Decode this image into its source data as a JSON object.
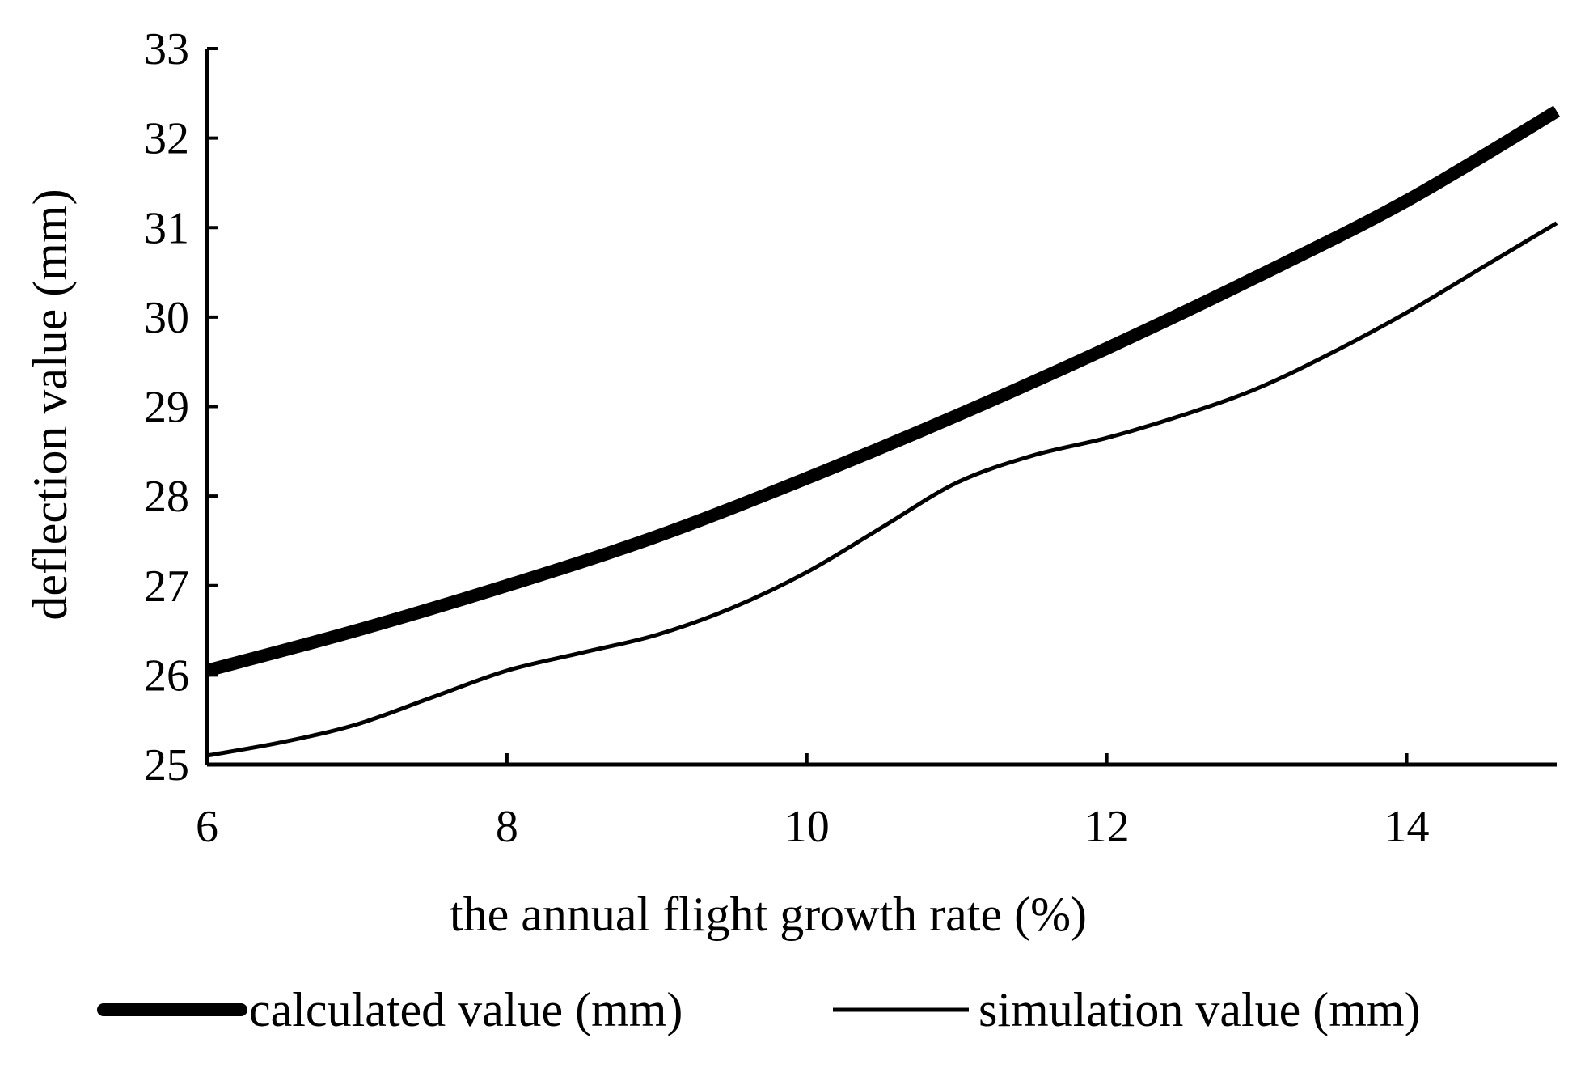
{
  "chart_data": {
    "type": "line",
    "title": "",
    "xlabel": "the annual flight growth rate (%)",
    "ylabel": "deflection value (mm)",
    "xlim": [
      6,
      15
    ],
    "ylim": [
      25,
      33
    ],
    "xticks": [
      6,
      8,
      10,
      12,
      14
    ],
    "yticks": [
      25,
      26,
      27,
      28,
      29,
      30,
      31,
      32,
      33
    ],
    "grid": false,
    "legend_position": "bottom",
    "series": [
      {
        "name": "calculated value (mm)",
        "style": "thick",
        "color": "#000000",
        "x": [
          6,
          7,
          8,
          9,
          10,
          11,
          12,
          13,
          14,
          15
        ],
        "y": [
          26.05,
          26.5,
          27.0,
          27.55,
          28.2,
          28.9,
          29.65,
          30.45,
          31.3,
          32.3
        ]
      },
      {
        "name": "simulation value (mm)",
        "style": "thin",
        "color": "#000000",
        "x": [
          6,
          6.5,
          7,
          7.5,
          8,
          8.5,
          9,
          9.5,
          10,
          10.5,
          11,
          11.5,
          12,
          12.5,
          13,
          13.5,
          14,
          14.5,
          15
        ],
        "y": [
          25.1,
          25.25,
          25.45,
          25.75,
          26.05,
          26.25,
          26.45,
          26.75,
          27.15,
          27.65,
          28.15,
          28.45,
          28.65,
          28.9,
          29.2,
          29.6,
          30.05,
          30.55,
          31.05
        ]
      }
    ]
  }
}
